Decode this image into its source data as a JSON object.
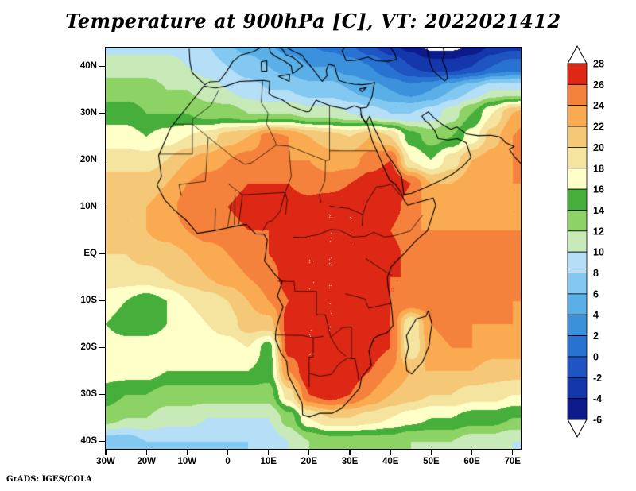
{
  "title": "Temperature at 900hPa [C], VT: 2022021412",
  "attribution": "GrADS: IGES/COLA",
  "axes": {
    "lat_ticks": [
      {
        "label": "40N",
        "lat": 40
      },
      {
        "label": "30N",
        "lat": 30
      },
      {
        "label": "20N",
        "lat": 20
      },
      {
        "label": "10N",
        "lat": 10
      },
      {
        "label": "EQ",
        "lat": 0
      },
      {
        "label": "10S",
        "lat": -10
      },
      {
        "label": "20S",
        "lat": -20
      },
      {
        "label": "30S",
        "lat": -30
      },
      {
        "label": "40S",
        "lat": -40
      }
    ],
    "lon_ticks": [
      {
        "label": "30W",
        "lon": -30
      },
      {
        "label": "20W",
        "lon": -20
      },
      {
        "label": "10W",
        "lon": -10
      },
      {
        "label": "0",
        "lon": 0
      },
      {
        "label": "10E",
        "lon": 10
      },
      {
        "label": "20E",
        "lon": 20
      },
      {
        "label": "30E",
        "lon": 30
      },
      {
        "label": "40E",
        "lon": 40
      },
      {
        "label": "50E",
        "lon": 50
      },
      {
        "label": "60E",
        "lon": 60
      },
      {
        "label": "70E",
        "lon": 70
      }
    ]
  },
  "colorbar": {
    "labels": [
      "28",
      "26",
      "24",
      "22",
      "20",
      "18",
      "16",
      "14",
      "12",
      "10",
      "8",
      "6",
      "4",
      "2",
      "0",
      "-2",
      "-4",
      "-6"
    ]
  },
  "chart_data": {
    "type": "heatmap",
    "variable": "Temperature",
    "level": "900hPa",
    "units": "C",
    "valid_time": "2022021412",
    "map_extent": {
      "lon_min": -30,
      "lon_max": 72,
      "lat_min": -41.6,
      "lat_max": 44
    },
    "colormap": {
      "boundaries": [
        -6,
        -4,
        -2,
        0,
        2,
        4,
        6,
        8,
        10,
        12,
        14,
        16,
        18,
        20,
        22,
        24,
        26,
        28
      ],
      "colors": [
        "#ffffff",
        "#0c1a8a",
        "#1437ac",
        "#1e55c3",
        "#2873d2",
        "#3c91dc",
        "#5aafe6",
        "#82c8f0",
        "#b4dff7",
        "#c8eab9",
        "#8cd264",
        "#46af3c",
        "#ffffc8",
        "#f5e3a0",
        "#f5c878",
        "#faaa50",
        "#f5823c",
        "#dc2814",
        "#ffffff"
      ]
    },
    "grid": {
      "lons": [
        -30,
        -25,
        -20,
        -15,
        -10,
        -5,
        0,
        5,
        10,
        15,
        20,
        25,
        30,
        35,
        40,
        45,
        50,
        55,
        60,
        65,
        70,
        75
      ],
      "lats": [
        45,
        40,
        35,
        30,
        25,
        20,
        15,
        10,
        5,
        0,
        -5,
        -10,
        -15,
        -20,
        -25,
        -30,
        -35,
        -40
      ],
      "values": [
        [
          9,
          9,
          9,
          9,
          9,
          8,
          6,
          5,
          4,
          3,
          2,
          1,
          0,
          -2,
          -4,
          -5,
          -7,
          -7,
          -6,
          -4,
          -3,
          -3
        ],
        [
          11,
          11,
          11,
          11,
          10,
          9,
          8,
          7,
          6,
          5,
          4,
          4,
          3,
          2,
          0,
          -2,
          -3,
          -3,
          -2,
          0,
          1,
          1
        ],
        [
          13,
          13,
          13,
          12,
          12,
          11,
          10,
          9,
          8,
          8,
          7,
          7,
          6,
          5,
          4,
          3,
          4,
          6,
          8,
          10,
          10,
          10
        ],
        [
          15,
          15,
          14,
          14,
          14,
          13,
          13,
          12,
          12,
          12,
          11,
          11,
          10,
          9,
          8,
          8,
          9,
          11,
          14,
          18,
          22,
          24
        ],
        [
          17,
          17,
          16,
          17,
          18,
          19,
          21,
          22,
          25,
          24,
          22,
          21,
          20,
          22,
          20,
          15,
          13,
          14,
          17,
          21,
          24,
          26
        ],
        [
          19,
          19,
          19,
          20,
          22,
          23,
          24,
          25,
          25,
          24,
          24,
          23,
          23,
          25,
          26,
          18,
          16,
          19,
          22,
          23,
          24,
          25
        ],
        [
          21,
          21,
          21,
          22,
          24,
          25,
          25,
          26,
          26,
          26,
          25,
          25,
          26,
          27,
          28,
          26,
          22,
          22,
          23,
          23,
          24,
          24
        ],
        [
          22,
          22,
          22,
          23,
          25,
          26,
          26,
          27,
          27,
          27,
          27,
          28,
          28,
          28,
          27,
          25,
          23,
          23,
          23,
          23,
          24,
          24
        ],
        [
          21,
          22,
          22,
          23,
          24,
          25,
          25,
          26,
          26,
          27,
          28,
          28,
          28,
          28,
          26,
          24,
          24,
          24,
          24,
          24,
          24,
          24
        ],
        [
          20,
          20,
          21,
          21,
          22,
          23,
          24,
          25,
          26,
          27,
          28,
          28,
          28,
          28,
          27,
          25,
          25,
          25,
          25,
          25,
          25,
          25
        ],
        [
          19,
          19,
          19,
          20,
          21,
          22,
          23,
          24,
          25,
          27,
          28,
          28,
          28,
          27,
          26,
          26,
          25,
          25,
          25,
          25,
          25,
          25
        ],
        [
          17,
          16,
          15,
          16,
          18,
          19,
          20,
          22,
          24,
          26,
          28,
          28,
          28,
          27,
          26,
          26,
          25,
          25,
          25,
          25,
          24,
          24
        ],
        [
          16,
          15,
          15,
          16,
          17,
          18,
          19,
          21,
          21,
          27,
          28,
          28,
          28,
          26,
          26,
          18,
          24,
          25,
          24,
          24,
          24,
          24
        ],
        [
          17,
          17,
          17,
          17,
          17,
          17,
          17,
          18,
          15,
          27,
          28,
          28,
          28,
          27,
          26,
          18,
          23,
          24,
          24,
          23,
          23,
          23
        ],
        [
          17,
          17,
          17,
          16,
          16,
          16,
          16,
          16,
          15,
          24,
          28,
          28,
          27,
          26,
          24,
          22,
          22,
          22,
          22,
          21,
          21,
          21
        ],
        [
          15,
          14,
          14,
          13,
          13,
          13,
          13,
          13,
          13,
          19,
          26,
          27,
          26,
          24,
          22,
          21,
          20,
          20,
          19,
          19,
          18,
          18
        ],
        [
          13,
          12,
          12,
          11,
          11,
          10,
          10,
          10,
          10,
          13,
          18,
          20,
          20,
          19,
          18,
          17,
          16,
          16,
          15,
          15,
          14,
          14
        ],
        [
          7,
          7,
          8,
          8,
          8,
          8,
          8,
          8,
          9,
          10,
          12,
          13,
          13,
          13,
          13,
          12,
          12,
          12,
          11,
          11,
          10,
          10
        ]
      ]
    }
  }
}
